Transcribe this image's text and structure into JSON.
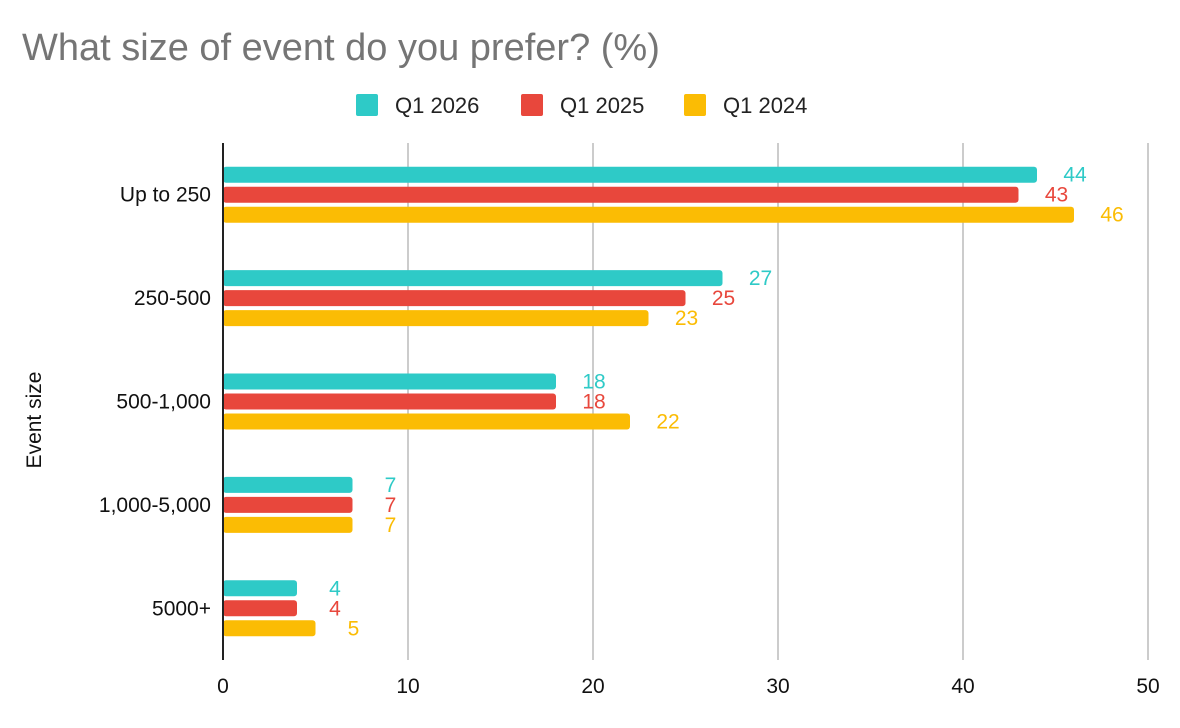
{
  "chart_data": {
    "type": "bar",
    "orientation": "horizontal",
    "title": "What size of event do you prefer? (%)",
    "xlabel": "",
    "ylabel": "Event size",
    "categories": [
      "Up to 250",
      "250-500",
      "500-1,000",
      "1,000-5,000",
      "5000+"
    ],
    "series": [
      {
        "name": "Q1 2026",
        "color": "#2ECAC7",
        "values": [
          44,
          27,
          18,
          7,
          4
        ]
      },
      {
        "name": "Q1 2025",
        "color": "#E8473C",
        "values": [
          43,
          25,
          18,
          7,
          4
        ]
      },
      {
        "name": "Q1 2024",
        "color": "#FBBC04",
        "values": [
          46,
          23,
          22,
          7,
          5
        ]
      }
    ],
    "xlim": [
      0,
      50
    ],
    "xticks": [
      0,
      10,
      20,
      30,
      40,
      50
    ],
    "grid": true,
    "legend_position": "top-center",
    "data_labels": true
  }
}
